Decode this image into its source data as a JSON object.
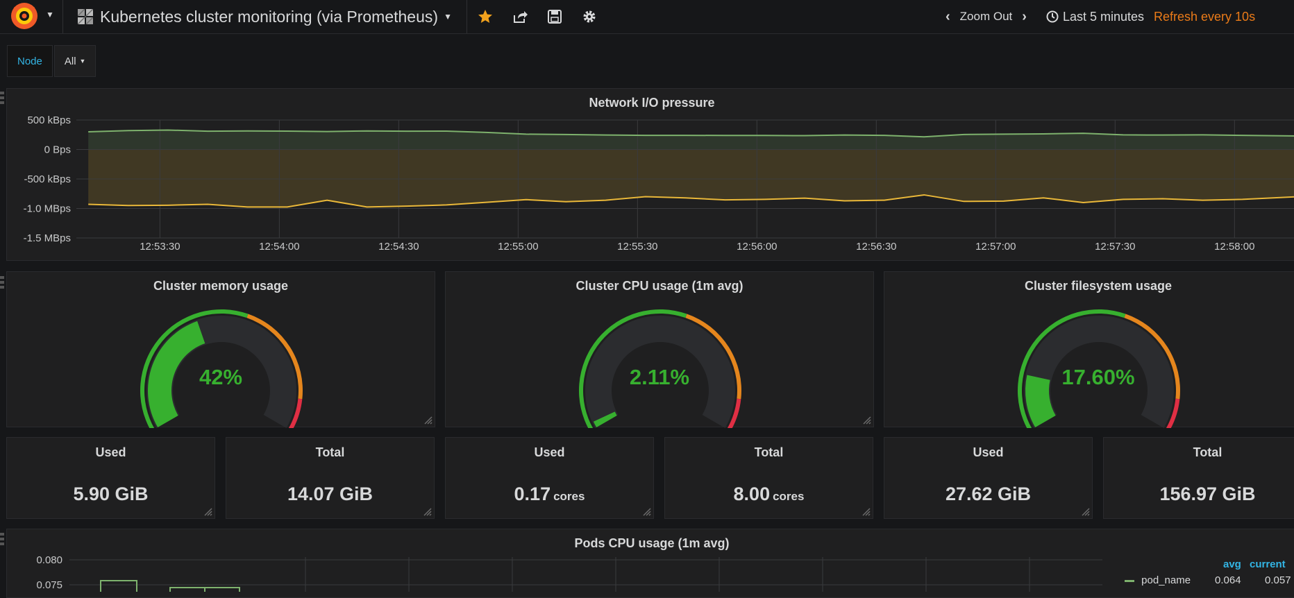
{
  "topbar": {
    "dashboard_title": "Kubernetes cluster monitoring (via Prometheus)",
    "zoom_out_label": "Zoom Out",
    "time_range": "Last 5 minutes",
    "refresh_label": "Refresh every 10s",
    "icons": [
      "grafana-logo",
      "dashboard-grid-icon",
      "star-icon",
      "share-icon",
      "save-icon",
      "settings-gear-icon",
      "chevron-left-icon",
      "chevron-right-icon",
      "clock-icon"
    ],
    "accent_color": "#eb7b18"
  },
  "variables": {
    "node_label": "Node",
    "node_value": "All"
  },
  "network_panel": {
    "title": "Network I/O pressure",
    "chart_data": {
      "type": "area",
      "y_tick_labels": [
        "500 kBps",
        "0 Bps",
        "-500 kBps",
        "-1.0 MBps",
        "-1.5 MBps"
      ],
      "y_ticks": [
        500,
        0,
        -500,
        -1000,
        -1500
      ],
      "ylim": [
        -1500,
        500
      ],
      "y_unit": "kBps",
      "x_tick_labels": [
        "12:53:30",
        "12:54:00",
        "12:54:30",
        "12:55:00",
        "12:55:30",
        "12:56:00",
        "12:56:30",
        "12:57:00",
        "12:57:30",
        "12:58:00"
      ],
      "x_ticks": [
        30,
        60,
        90,
        120,
        150,
        180,
        210,
        240,
        270,
        300
      ],
      "xlim": [
        9,
        316
      ],
      "grid": true,
      "series": [
        {
          "color": "#7eb26d",
          "x": [
            12,
            22,
            32,
            42,
            52,
            62,
            72,
            82,
            92,
            102,
            112,
            122,
            132,
            142,
            152,
            162,
            172,
            182,
            192,
            202,
            212,
            222,
            232,
            242,
            252,
            262,
            272,
            282,
            292,
            302,
            316
          ],
          "y": [
            300,
            320,
            330,
            310,
            315,
            312,
            305,
            315,
            310,
            312,
            290,
            260,
            255,
            245,
            240,
            240,
            238,
            238,
            235,
            245,
            240,
            215,
            255,
            260,
            265,
            275,
            248,
            245,
            248,
            240,
            230
          ]
        },
        {
          "color": "#eab839",
          "x": [
            12,
            22,
            32,
            42,
            52,
            62,
            72,
            82,
            92,
            102,
            112,
            122,
            132,
            142,
            152,
            162,
            172,
            182,
            192,
            202,
            212,
            222,
            232,
            242,
            252,
            262,
            272,
            282,
            292,
            302,
            316
          ],
          "y": [
            -930,
            -950,
            -945,
            -930,
            -975,
            -975,
            -860,
            -975,
            -960,
            -940,
            -895,
            -850,
            -885,
            -860,
            -800,
            -820,
            -855,
            -845,
            -825,
            -870,
            -860,
            -770,
            -880,
            -875,
            -820,
            -900,
            -845,
            -835,
            -860,
            -845,
            -800
          ]
        }
      ]
    }
  },
  "gauges": [
    {
      "title": "Cluster memory usage",
      "value_text": "42%",
      "value": 42,
      "max": 100
    },
    {
      "title": "Cluster CPU usage (1m avg)",
      "value_text": "2.11%",
      "value": 2.11,
      "max": 100
    },
    {
      "title": "Cluster filesystem usage",
      "value_text": "17.60%",
      "value": 17.6,
      "max": 100
    }
  ],
  "gauge_colors": {
    "ok": "#37b02f",
    "warn": "#e5861d",
    "crit": "#e02f44",
    "track": "#2b2c2f"
  },
  "stats": [
    {
      "title": "Used",
      "value": "5.90 GiB",
      "unit": ""
    },
    {
      "title": "Total",
      "value": "14.07 GiB",
      "unit": ""
    },
    {
      "title": "Used",
      "value": "0.17",
      "unit": "cores"
    },
    {
      "title": "Total",
      "value": "8.00",
      "unit": "cores"
    },
    {
      "title": "Used",
      "value": "27.62 GiB",
      "unit": ""
    },
    {
      "title": "Total",
      "value": "156.97 GiB",
      "unit": ""
    }
  ],
  "pods_panel": {
    "title": "Pods CPU usage (1m avg)",
    "chart_data": {
      "type": "bar",
      "y_tick_labels": [
        "0.080",
        "0.075"
      ],
      "y_ticks": [
        0.08,
        0.075
      ],
      "legend": {
        "columns": [
          "avg",
          "current"
        ],
        "rows": [
          {
            "name": "pod_name",
            "avg": "0.064",
            "current": "0.057"
          }
        ]
      }
    }
  }
}
